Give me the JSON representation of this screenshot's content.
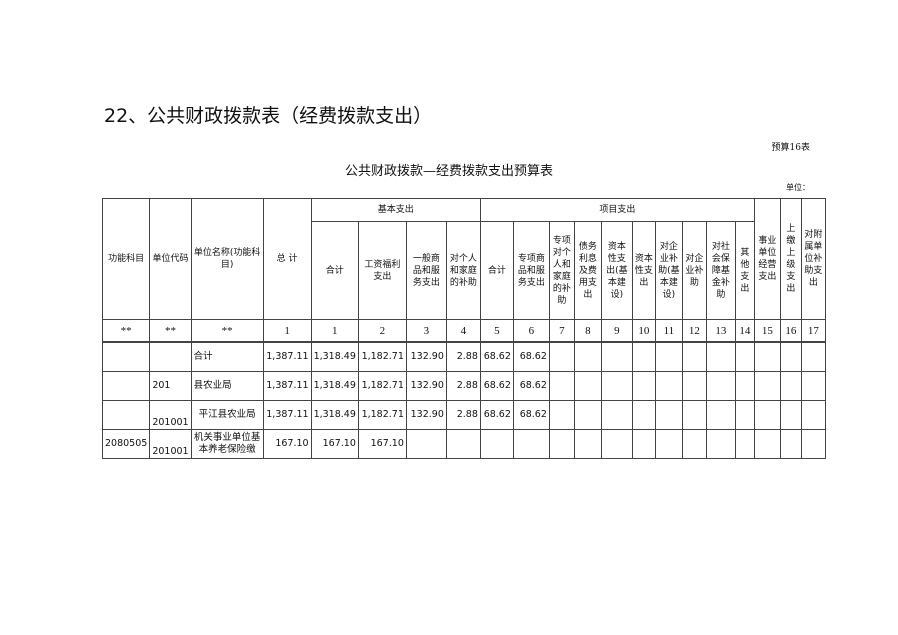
{
  "title": "22、公共财政拨款表（经费拨款支出）",
  "form_no": "预算16表",
  "table_title": "公共财政拨款—经费拨款支出预算表",
  "unit_label": "单位：",
  "headers": {
    "func": "功能科目",
    "code": "单位代码",
    "name": "单位名称(功能科目)",
    "total": "总 计",
    "basic": "基本支出",
    "project": "项目支出",
    "basic_cols": [
      "合计",
      "工资福利支出",
      "一般商品和服务支出",
      "对个人和家庭的补助"
    ],
    "project_cols": [
      "合计",
      "专项商品和服务支出",
      "专项对个人和家庭的补助",
      "债务利息及费用支出",
      "资本性支出(基本建设)",
      "资本性支出",
      "对企业补助(基本建设)",
      "对企业补助",
      "对社会保障基金补助",
      "其他支出"
    ],
    "biz": "事业单位经营支出",
    "upper": "上缴上级支出",
    "sub": "对附属单位补助支出"
  },
  "numbers": [
    "**",
    "**",
    "**",
    "1",
    "1",
    "2",
    "3",
    "4",
    "5",
    "6",
    "7",
    "8",
    "9",
    "10",
    "11",
    "12",
    "13",
    "14",
    "15",
    "16",
    "17"
  ],
  "rows": [
    {
      "func": "",
      "code": "",
      "name": "合计",
      "v": [
        "1,387.11",
        "1,318.49",
        "1,182.71",
        "132.90",
        "2.88",
        "68.62",
        "68.62"
      ]
    },
    {
      "func": "",
      "code": "201",
      "name": "县农业局",
      "v": [
        "1,387.11",
        "1,318.49",
        "1,182.71",
        "132.90",
        "2.88",
        "68.62",
        "68.62"
      ]
    },
    {
      "func": "",
      "code": "201001",
      "name": "平江县农业局",
      "v": [
        "1,387.11",
        "1,318.49",
        "1,182.71",
        "132.90",
        "2.88",
        "68.62",
        "68.62"
      ]
    },
    {
      "func": "2080505",
      "code": "201001",
      "name": "机关事业单位基本养老保险缴",
      "v": [
        "167.10",
        "167.10",
        "167.10",
        "",
        "",
        "",
        ""
      ]
    }
  ]
}
